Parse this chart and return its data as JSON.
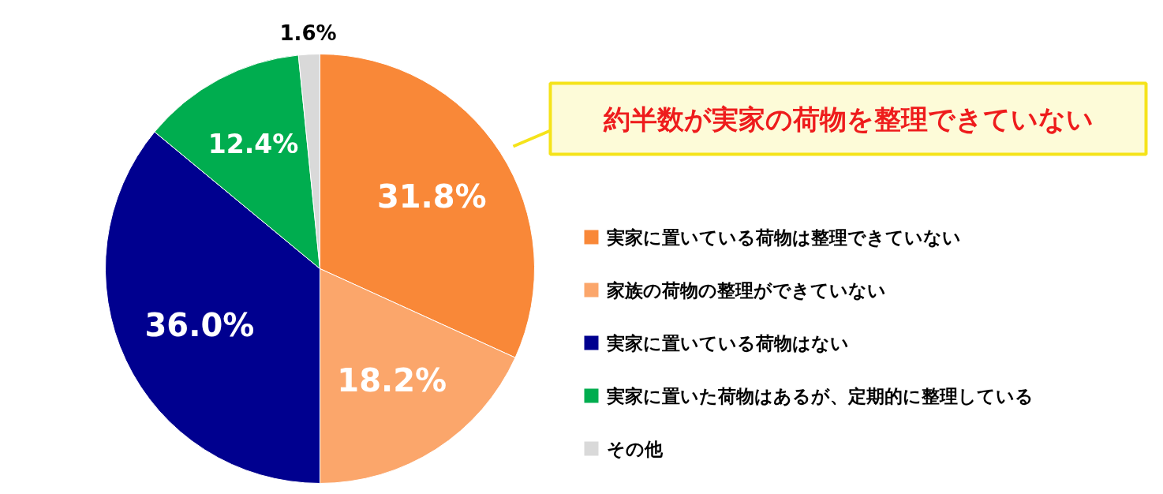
{
  "chart_data": {
    "type": "pie",
    "categories": [
      "実家に置いている荷物は整理できていない",
      "家族の荷物の整理ができていない",
      "実家に置いている荷物はない",
      "実家に置いた荷物はあるが、定期的に整理している",
      "その他"
    ],
    "values": [
      31.8,
      18.2,
      36.0,
      12.4,
      1.6
    ],
    "colors": [
      "#f98838",
      "#fba66b",
      "#00008f",
      "#00ad4f",
      "#d9d9d9"
    ],
    "value_labels": [
      "31.8%",
      "18.2%",
      "36.0%",
      "12.4%",
      "1.6%"
    ],
    "annotations": [
      "約半数が実家の荷物を整理できていない"
    ],
    "legend": "right"
  }
}
